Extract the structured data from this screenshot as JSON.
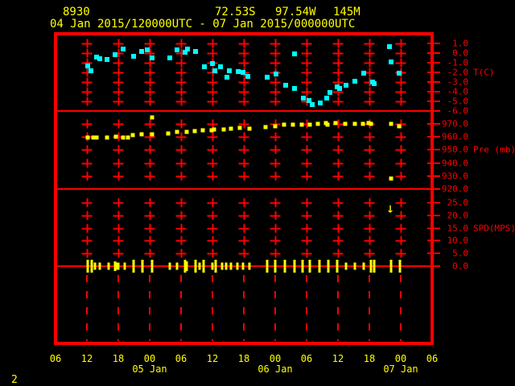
{
  "header": {
    "station_id": "8930",
    "latitude": "72.53S",
    "longitude": "97.54W",
    "elevation": "145M",
    "time_range": "04 Jan 2015/120000UTC - 07 Jan 2015/000000UTC"
  },
  "page_number": "2",
  "colors": {
    "frame": "#ff0000",
    "grid": "#ff0000",
    "axis_text": "#ff0000",
    "label_text": "#ffff00",
    "temperature": "#00ffff",
    "pressure": "#ffff00",
    "wind": "#ffff00",
    "background": "#000000"
  },
  "chart_data": {
    "type": "scatter",
    "title": "station time-series meteogram",
    "x_axis": {
      "span_hours": 72,
      "hour_labels": [
        "06",
        "12",
        "18",
        "00",
        "06",
        "12",
        "18",
        "00",
        "06",
        "12",
        "18",
        "00",
        "06"
      ],
      "date_labels": [
        {
          "label": "05 Jan",
          "t": 18
        },
        {
          "label": "06 Jan",
          "t": 42
        },
        {
          "label": "07 Jan",
          "t": 66
        }
      ]
    },
    "panels": [
      {
        "name": "temperature",
        "unit_label": "T(C)",
        "unit_at": -2,
        "ticks": [
          "1.0",
          "0.0",
          "-1.0",
          "-2.0",
          "-3.0",
          "-4.0",
          "-5.0",
          "-6.0"
        ],
        "points": [
          [
            6.1,
            -1.3
          ],
          [
            6.7,
            -1.8
          ],
          [
            7.9,
            -0.4
          ],
          [
            8.5,
            -0.6
          ],
          [
            9.9,
            -0.7
          ],
          [
            11.4,
            -0.2
          ],
          [
            12.9,
            0.4
          ],
          [
            14.9,
            -0.3
          ],
          [
            16.4,
            0.2
          ],
          [
            17.5,
            0.3
          ],
          [
            18.4,
            -0.5
          ],
          [
            21.8,
            -0.5
          ],
          [
            23.3,
            0.3
          ],
          [
            24.8,
            0.1
          ],
          [
            25.3,
            0.4
          ],
          [
            26.8,
            0.2
          ],
          [
            28.5,
            -1.4
          ],
          [
            30.0,
            -1.1
          ],
          [
            30.4,
            -1.8
          ],
          [
            31.5,
            -1.4
          ],
          [
            32.7,
            -2.5
          ],
          [
            33.2,
            -1.8
          ],
          [
            34.9,
            -1.9
          ],
          [
            35.8,
            -2.0
          ],
          [
            36.7,
            -2.4
          ],
          [
            40.5,
            -2.5
          ],
          [
            42.2,
            -2.2
          ],
          [
            44.0,
            -3.3
          ],
          [
            45.7,
            -0.1
          ],
          [
            45.7,
            -3.7
          ],
          [
            47.4,
            -4.7
          ],
          [
            48.5,
            -4.9
          ],
          [
            49.0,
            -5.3
          ],
          [
            50.6,
            -5.2
          ],
          [
            51.9,
            -4.7
          ],
          [
            52.4,
            -4.1
          ],
          [
            53.9,
            -3.5
          ],
          [
            54.3,
            -3.7
          ],
          [
            55.6,
            -3.3
          ],
          [
            57.2,
            -2.9
          ],
          [
            58.9,
            -2.1
          ],
          [
            60.6,
            -3.0
          ],
          [
            60.9,
            -3.2
          ],
          [
            63.9,
            0.7
          ],
          [
            64.2,
            -0.9
          ],
          [
            65.7,
            -2.1
          ]
        ]
      },
      {
        "name": "pressure",
        "unit_label": "Pre (mb)",
        "unit_at": 950,
        "ticks": [
          "970.0",
          "960.0",
          "950.0",
          "940.0",
          "930.0",
          "920.0"
        ],
        "points": [
          [
            6.2,
            959.2
          ],
          [
            7.3,
            959.2
          ],
          [
            7.9,
            959.2
          ],
          [
            9.9,
            959.8
          ],
          [
            11.6,
            960.4
          ],
          [
            12.9,
            959.8
          ],
          [
            13.8,
            959.2
          ],
          [
            14.8,
            961.1
          ],
          [
            16.4,
            961.7
          ],
          [
            18.4,
            975.1
          ],
          [
            18.5,
            961.7
          ],
          [
            21.6,
            962.4
          ],
          [
            23.3,
            963.6
          ],
          [
            25.0,
            963.6
          ],
          [
            26.6,
            964.3
          ],
          [
            28.2,
            964.9
          ],
          [
            29.8,
            964.9
          ],
          [
            30.3,
            965.5
          ],
          [
            32.1,
            965.5
          ],
          [
            33.6,
            966.1
          ],
          [
            35.2,
            966.8
          ],
          [
            37.0,
            966.1
          ],
          [
            40.2,
            967.5
          ],
          [
            42.0,
            968.1
          ],
          [
            43.7,
            969.4
          ],
          [
            45.4,
            969.4
          ],
          [
            47.0,
            969.4
          ],
          [
            48.6,
            969.4
          ],
          [
            50.2,
            970.0
          ],
          [
            51.7,
            970.6
          ],
          [
            52.0,
            969.4
          ],
          [
            53.6,
            970.6
          ],
          [
            55.4,
            970.0
          ],
          [
            57.2,
            970.0
          ],
          [
            58.7,
            970.0
          ],
          [
            59.8,
            970.6
          ],
          [
            60.3,
            970.0
          ],
          [
            64.1,
            970.0
          ],
          [
            64.1,
            927.9
          ],
          [
            65.7,
            968.1
          ]
        ]
      },
      {
        "name": "wind_speed",
        "unit_label": "SPD(MPS)",
        "unit_at": 15,
        "ticks": [
          "25.0",
          "20.0",
          "15.0",
          "10.0",
          "5.0",
          "0.0"
        ],
        "staffs": [
          [
            6.2,
            2.7
          ],
          [
            6.9,
            2.7
          ],
          [
            7.5,
            1.5
          ],
          [
            8.4,
            1.5
          ],
          [
            10.1,
            1.5
          ],
          [
            11.4,
            2.0
          ],
          [
            11.7,
            1.5
          ],
          [
            12.0,
            1.5
          ],
          [
            13.3,
            1.5
          ],
          [
            14.9,
            2.7
          ],
          [
            16.6,
            2.7
          ],
          [
            18.4,
            2.7
          ],
          [
            21.8,
            1.5
          ],
          [
            23.3,
            1.5
          ],
          [
            24.7,
            2.7
          ],
          [
            25.1,
            2.0
          ],
          [
            26.7,
            2.7
          ],
          [
            27.6,
            1.5
          ],
          [
            28.3,
            2.7
          ],
          [
            30.0,
            1.5
          ],
          [
            30.6,
            2.7
          ],
          [
            31.8,
            1.5
          ],
          [
            32.6,
            1.5
          ],
          [
            33.5,
            1.5
          ],
          [
            34.7,
            1.5
          ],
          [
            35.8,
            1.5
          ],
          [
            37.0,
            1.5
          ],
          [
            40.5,
            2.7
          ],
          [
            42.0,
            2.7
          ],
          [
            43.9,
            2.7
          ],
          [
            45.7,
            2.7
          ],
          [
            47.2,
            2.7
          ],
          [
            48.6,
            2.7
          ],
          [
            50.4,
            2.7
          ],
          [
            52.2,
            2.7
          ],
          [
            53.8,
            2.7
          ],
          [
            55.6,
            1.5
          ],
          [
            57.3,
            1.5
          ],
          [
            58.9,
            1.5
          ],
          [
            60.3,
            2.7
          ],
          [
            60.9,
            2.7
          ],
          [
            64.1,
            2.7
          ],
          [
            65.9,
            2.7
          ]
        ],
        "arrow": {
          "glyph": "↓",
          "t": 64.0,
          "v": 22.5
        }
      }
    ]
  }
}
